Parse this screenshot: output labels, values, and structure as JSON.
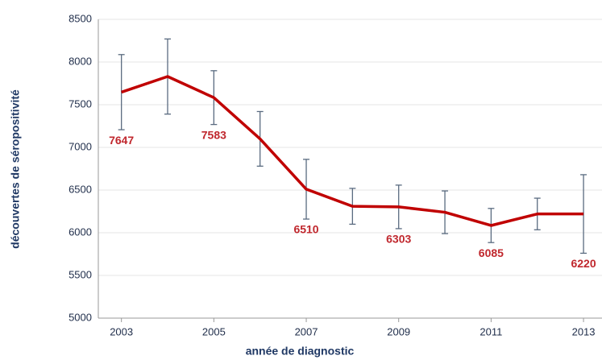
{
  "chart_data": {
    "type": "line",
    "x_label": "année de diagnostic",
    "y_label": "découvertes de séropositivité",
    "x": [
      2003,
      2004,
      2005,
      2006,
      2007,
      2008,
      2009,
      2010,
      2011,
      2012,
      2013
    ],
    "series": [
      {
        "name": "découvertes",
        "color": "#c00000",
        "values": [
          7647,
          7830,
          7583,
          7100,
          6510,
          6310,
          6303,
          6240,
          6085,
          6220,
          6220
        ],
        "errors": [
          440,
          440,
          315,
          320,
          350,
          210,
          255,
          250,
          200,
          185,
          460
        ],
        "value_labels": [
          "7647",
          null,
          "7583",
          null,
          "6510",
          null,
          "6303",
          null,
          "6085",
          null,
          "6220"
        ]
      }
    ],
    "xlim": [
      2002.5,
      2013.4
    ],
    "xticks": [
      2003,
      2005,
      2007,
      2009,
      2011,
      2013
    ],
    "ylim": [
      5000,
      8500
    ],
    "yticks": [
      5000,
      5500,
      6000,
      6500,
      7000,
      7500,
      8000,
      8500
    ],
    "grid": true
  }
}
